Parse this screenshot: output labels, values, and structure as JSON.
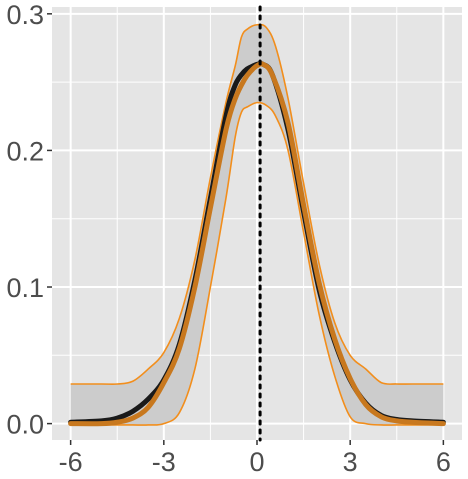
{
  "chart_data": {
    "type": "line",
    "title": "",
    "xlabel": "",
    "ylabel": "",
    "xlim": [
      -6.6,
      6.6
    ],
    "ylim": [
      -0.012,
      0.305
    ],
    "x_ticks": [
      -6,
      -3,
      0,
      3,
      6
    ],
    "x_tick_labels": [
      "-6",
      "-3",
      "0",
      "3",
      "6"
    ],
    "y_ticks": [
      0.0,
      0.1,
      0.2,
      0.3
    ],
    "y_tick_labels": [
      "0.0",
      "0.1",
      "0.2",
      "0.3"
    ],
    "grid": true,
    "vline_x": 0.1,
    "colors": {
      "panel": "#e5e5e5",
      "grid": "#ffffff",
      "band_fill": "#cccccc",
      "band_edge": "#f28e1c",
      "estimate": "#c8781e",
      "reference": "#1a1a1a",
      "vline": "#000000"
    },
    "band": {
      "x": [
        -6,
        -5,
        -4.5,
        -4,
        -3.5,
        -3,
        -2.5,
        -2,
        -1.5,
        -1,
        -0.7,
        -0.5,
        -0.3,
        0,
        0.3,
        0.6,
        1,
        1.5,
        2,
        2.5,
        3,
        3.5,
        4,
        4.5,
        5,
        6
      ],
      "upper": [
        0.029,
        0.029,
        0.029,
        0.031,
        0.04,
        0.052,
        0.077,
        0.12,
        0.18,
        0.235,
        0.262,
        0.283,
        0.289,
        0.292,
        0.29,
        0.276,
        0.238,
        0.176,
        0.117,
        0.074,
        0.05,
        0.04,
        0.03,
        0.029,
        0.029,
        0.029
      ],
      "lower": [
        -0.001,
        -0.001,
        -0.001,
        -0.001,
        -0.001,
        0.0,
        0.008,
        0.04,
        0.1,
        0.165,
        0.21,
        0.228,
        0.232,
        0.235,
        0.233,
        0.225,
        0.2,
        0.14,
        0.08,
        0.035,
        0.005,
        0.0,
        -0.001,
        -0.001,
        -0.001,
        -0.001
      ]
    },
    "series": [
      {
        "x": [
          -6,
          -5,
          -4.5,
          -4,
          -3.5,
          -3,
          -2.5,
          -2,
          -1.5,
          -1,
          -0.7,
          -0.4,
          -0.2,
          0,
          0.2,
          0.5,
          1,
          1.5,
          2,
          2.5,
          3,
          3.5,
          4,
          4.5,
          5,
          6
        ],
        "values": [
          0.001,
          0.002,
          0.004,
          0.009,
          0.018,
          0.032,
          0.058,
          0.105,
          0.165,
          0.225,
          0.248,
          0.258,
          0.261,
          0.263,
          0.263,
          0.255,
          0.215,
          0.155,
          0.098,
          0.06,
          0.032,
          0.015,
          0.006,
          0.003,
          0.002,
          0.001
        ]
      },
      {
        "x": [
          -6,
          -5,
          -4.5,
          -4,
          -3.5,
          -3,
          -2.5,
          -2,
          -1.5,
          -1,
          -0.7,
          -0.4,
          -0.2,
          0,
          0.2,
          0.5,
          1,
          1.5,
          2,
          2.5,
          3,
          3.5,
          4,
          4.5,
          5,
          6
        ],
        "values": [
          0.0,
          0.0,
          0.001,
          0.004,
          0.012,
          0.03,
          0.055,
          0.1,
          0.158,
          0.215,
          0.238,
          0.252,
          0.258,
          0.262,
          0.263,
          0.255,
          0.22,
          0.16,
          0.103,
          0.062,
          0.033,
          0.014,
          0.005,
          0.002,
          0.001,
          0.0
        ]
      }
    ]
  }
}
